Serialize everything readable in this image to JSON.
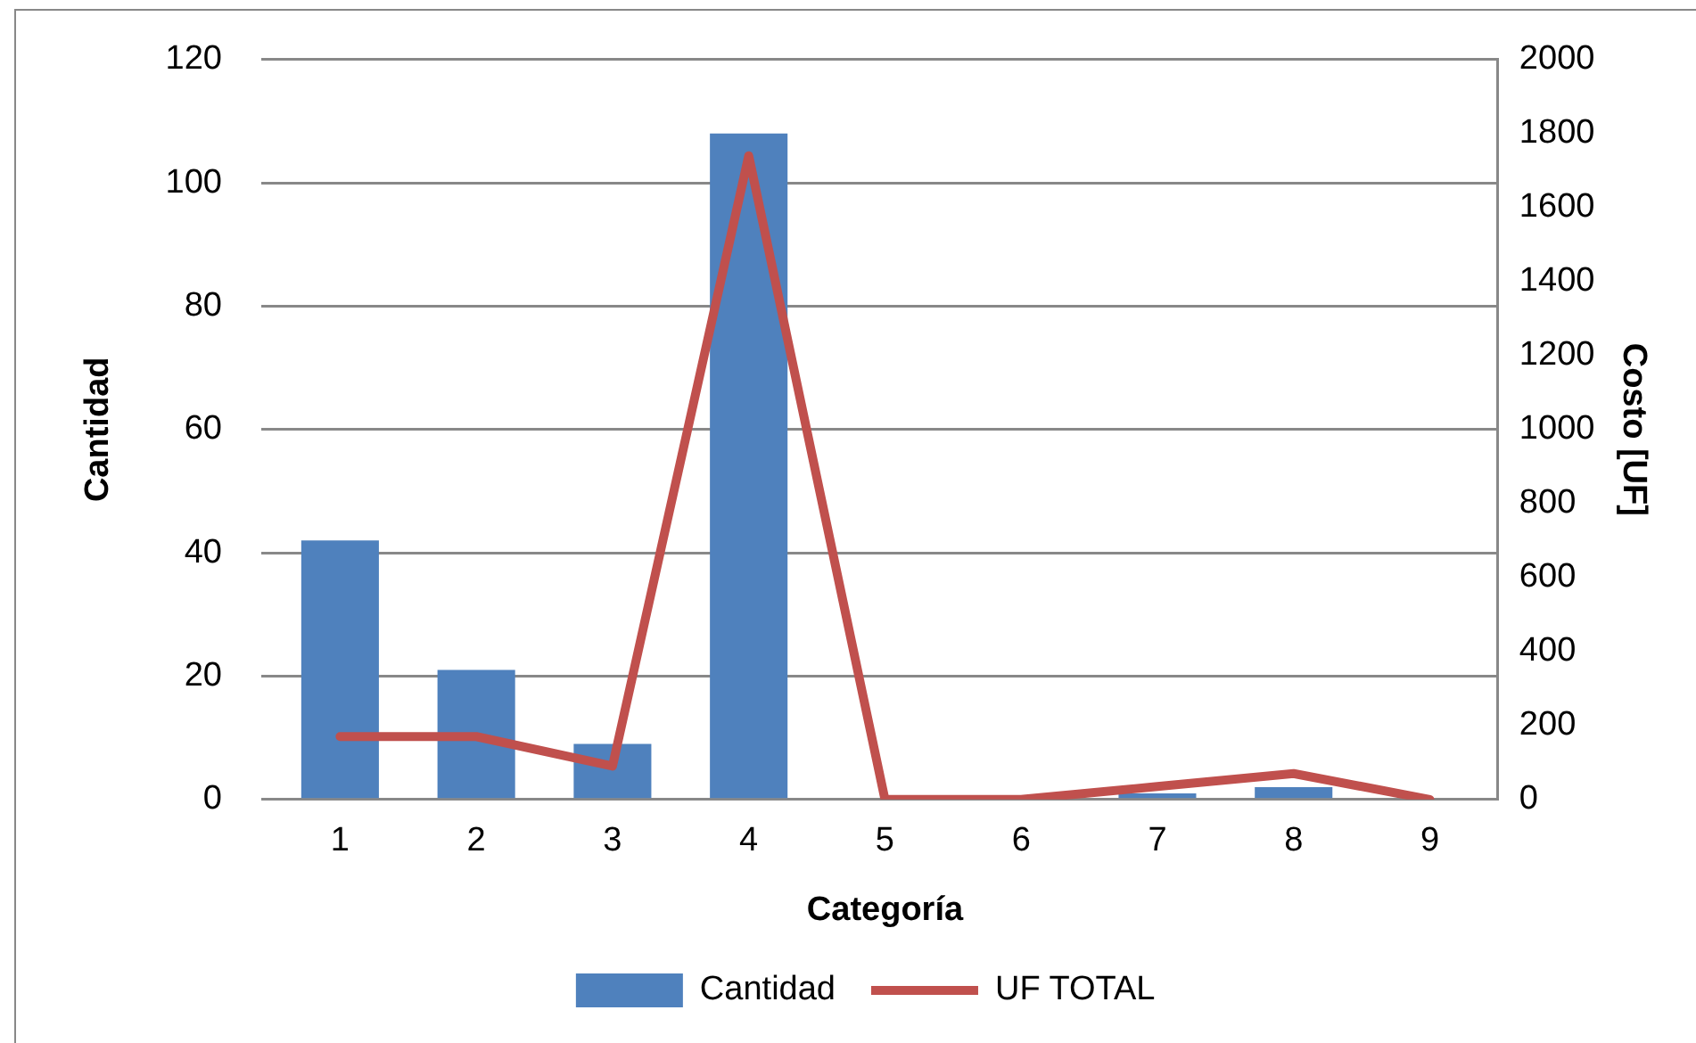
{
  "chart_data": {
    "type": "bar",
    "xlabel": "Categoría",
    "ylabel": "Cantidad",
    "y2label": "Costo [UF]",
    "categories": [
      "1",
      "2",
      "3",
      "4",
      "5",
      "6",
      "7",
      "8",
      "9"
    ],
    "series": [
      {
        "name": "Cantidad",
        "color": "#4f81bd",
        "values": [
          42,
          21,
          9,
          108,
          0,
          0,
          1,
          2,
          0
        ]
      },
      {
        "name": "UF TOTAL",
        "type": "line",
        "axis": "y2",
        "color": "#c0504d",
        "marker": "none",
        "values": [
          170,
          170,
          90,
          1740,
          0,
          0,
          35,
          70,
          0
        ]
      }
    ],
    "ylim": [
      0,
      120
    ],
    "yticks": [
      0,
      20,
      40,
      60,
      80,
      100,
      120
    ],
    "y2lim": [
      0,
      2000
    ],
    "y2ticks": [
      0,
      200,
      400,
      600,
      800,
      1000,
      1200,
      1400,
      1600,
      1800,
      2000
    ],
    "grid": "y",
    "legend": "bottom"
  }
}
